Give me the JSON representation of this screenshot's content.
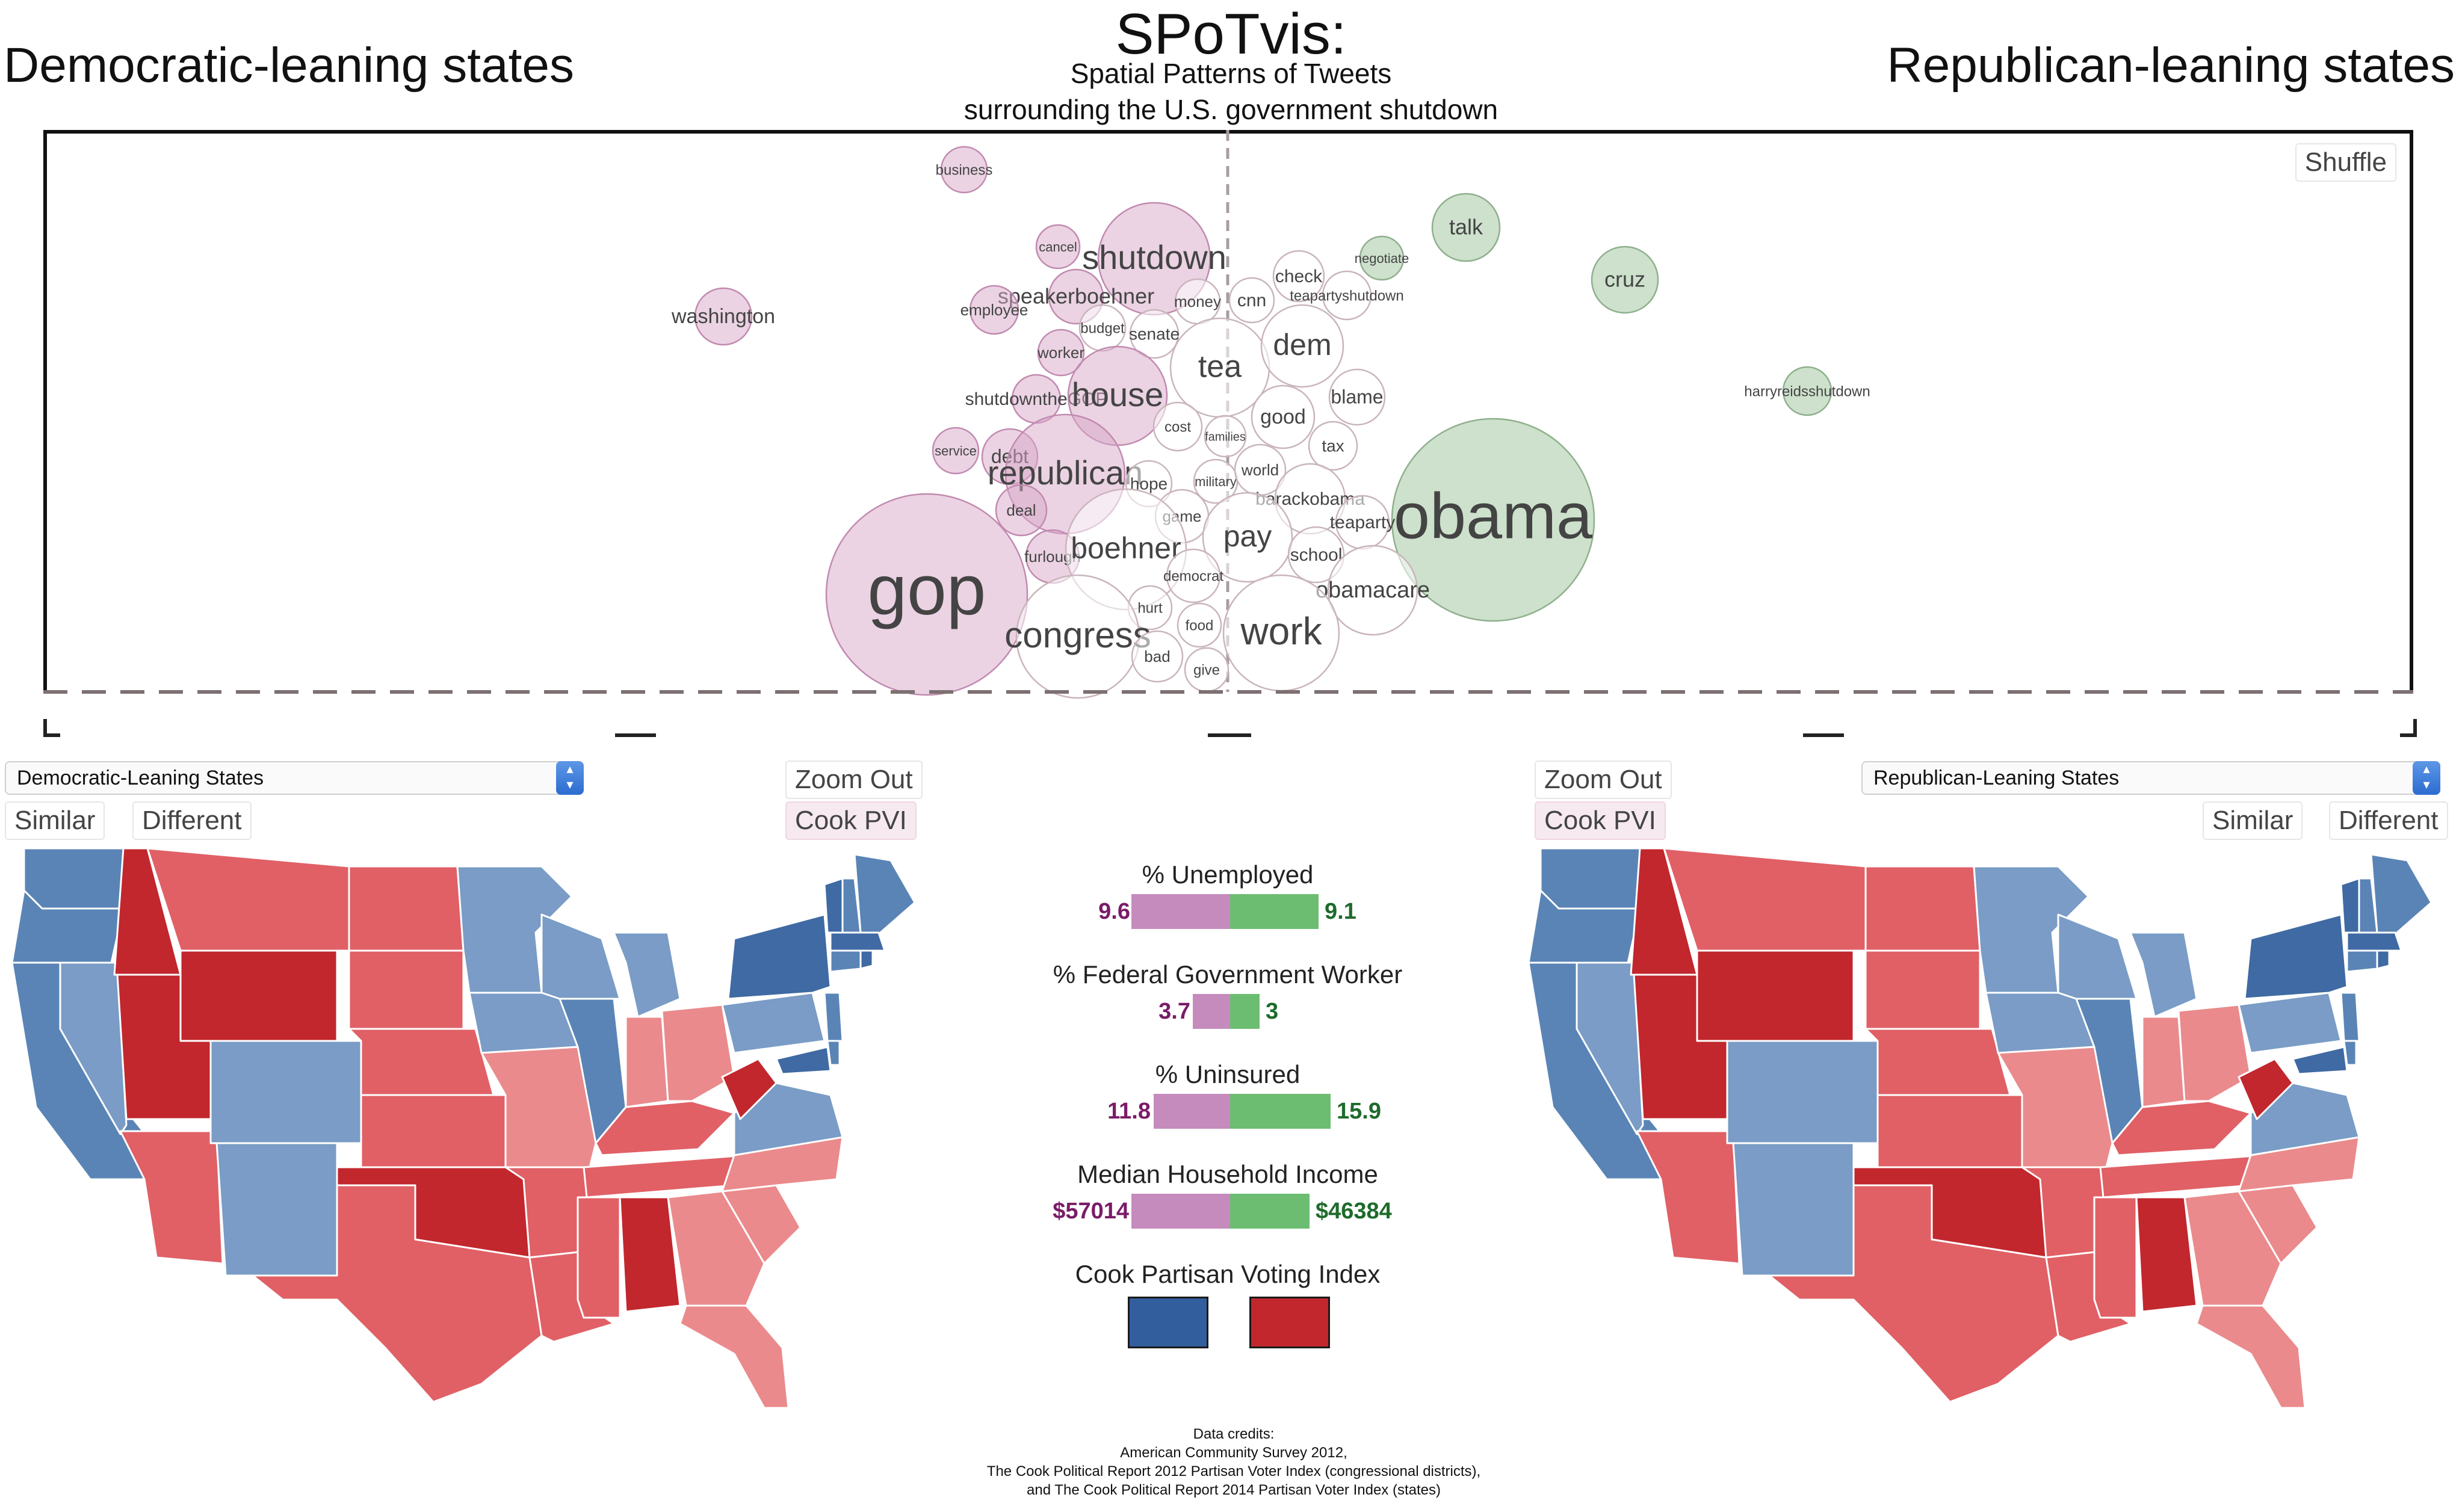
{
  "header": {
    "left_title": "Democratic-leaning states",
    "right_title": "Republican-leaning states",
    "app_title": "SPoTvis:",
    "subtitle_line1": "Spatial Patterns of Tweets",
    "subtitle_line2": "surrounding the U.S. government shutdown"
  },
  "cloud": {
    "shuffle_label": "Shuffle",
    "colors": {
      "dem": "#d8a8c8",
      "rep": "#9cc39a",
      "neutral": "#ffffff",
      "stroke_dem": "#c28ab0",
      "stroke_rep": "#8fb08d"
    },
    "words": [
      {
        "text": "business",
        "lean": "dem"
      },
      {
        "text": "washington",
        "lean": "dem"
      },
      {
        "text": "cancel",
        "lean": "dem"
      },
      {
        "text": "gop",
        "lean": "dem"
      },
      {
        "text": "shutdown",
        "lean": "dem"
      },
      {
        "text": "speakerboehner",
        "lean": "dem"
      },
      {
        "text": "employee",
        "lean": "dem"
      },
      {
        "text": "money",
        "lean": "neutral"
      },
      {
        "text": "cnn",
        "lean": "neutral"
      },
      {
        "text": "check",
        "lean": "neutral"
      },
      {
        "text": "teapartyshutdown",
        "lean": "neutral"
      },
      {
        "text": "negotiate",
        "lean": "rep"
      },
      {
        "text": "talk",
        "lean": "rep"
      },
      {
        "text": "cruz",
        "lean": "rep"
      },
      {
        "text": "budget",
        "lean": "neutral"
      },
      {
        "text": "senate",
        "lean": "neutral"
      },
      {
        "text": "worker",
        "lean": "dem"
      },
      {
        "text": "tea",
        "lean": "neutral"
      },
      {
        "text": "dem",
        "lean": "neutral"
      },
      {
        "text": "shutdowntheGOP",
        "lean": "dem"
      },
      {
        "text": "house",
        "lean": "dem"
      },
      {
        "text": "blame",
        "lean": "neutral"
      },
      {
        "text": "harryreidsshutdown",
        "lean": "rep"
      },
      {
        "text": "cost",
        "lean": "neutral"
      },
      {
        "text": "families",
        "lean": "neutral"
      },
      {
        "text": "good",
        "lean": "neutral"
      },
      {
        "text": "service",
        "lean": "dem"
      },
      {
        "text": "debt",
        "lean": "dem"
      },
      {
        "text": "tax",
        "lean": "neutral"
      },
      {
        "text": "republican",
        "lean": "dem"
      },
      {
        "text": "hope",
        "lean": "neutral"
      },
      {
        "text": "military",
        "lean": "neutral"
      },
      {
        "text": "world",
        "lean": "neutral"
      },
      {
        "text": "deal",
        "lean": "dem"
      },
      {
        "text": "barackobama",
        "lean": "neutral"
      },
      {
        "text": "obama",
        "lean": "rep"
      },
      {
        "text": "teaparty",
        "lean": "neutral"
      },
      {
        "text": "game",
        "lean": "neutral"
      },
      {
        "text": "pay",
        "lean": "neutral"
      },
      {
        "text": "school",
        "lean": "neutral"
      },
      {
        "text": "furlough",
        "lean": "dem"
      },
      {
        "text": "boehner",
        "lean": "neutral"
      },
      {
        "text": "democrat",
        "lean": "neutral"
      },
      {
        "text": "obamacare",
        "lean": "neutral"
      },
      {
        "text": "hurt",
        "lean": "neutral"
      },
      {
        "text": "food",
        "lean": "neutral"
      },
      {
        "text": "work",
        "lean": "neutral"
      },
      {
        "text": "congress",
        "lean": "neutral"
      },
      {
        "text": "bad",
        "lean": "neutral"
      },
      {
        "text": "give",
        "lean": "neutral"
      }
    ]
  },
  "controls": {
    "left_select": "Democratic-Leaning States",
    "right_select": "Republican-Leaning States",
    "zoom_out": "Zoom Out",
    "cook_pvi": "Cook PVI",
    "similar": "Similar",
    "different": "Different"
  },
  "stats": {
    "unemployed": {
      "label": "% Unemployed",
      "dem": "9.6",
      "rep": "9.1",
      "dem_value": 9.6,
      "rep_value": 9.1
    },
    "federal": {
      "label": "% Federal Government Worker",
      "dem": "3.7",
      "rep": "3",
      "dem_value": 3.7,
      "rep_value": 3.0
    },
    "uninsured": {
      "label": "% Uninsured",
      "dem": "11.8",
      "rep": "15.9",
      "dem_value": 11.8,
      "rep_value": 15.9
    },
    "income": {
      "label": "Median Household Income",
      "dem": "$57014",
      "rep": "$46384",
      "dem_value": 57014,
      "rep_value": 46384
    },
    "pvi_label": "Cook Partisan Voting Index",
    "pvi_colors": {
      "dem": "#335e9e",
      "rep": "#c1272d"
    }
  },
  "map_colors": {
    "strong_dem": "#3f6aa3",
    "dem": "#5a84b6",
    "lean_dem": "#7a9cc6",
    "lean_rep": "#ea8a8c",
    "rep": "#e06066",
    "strong_rep": "#c1272d"
  },
  "credits": {
    "line1": "Data credits:",
    "line2": "American Community Survey 2012,",
    "line3": "The Cook Political Report 2012 Partisan Voter Index (congressional districts),",
    "line4": "and The Cook Political Report 2014 Partisan Voter Index (states)"
  }
}
